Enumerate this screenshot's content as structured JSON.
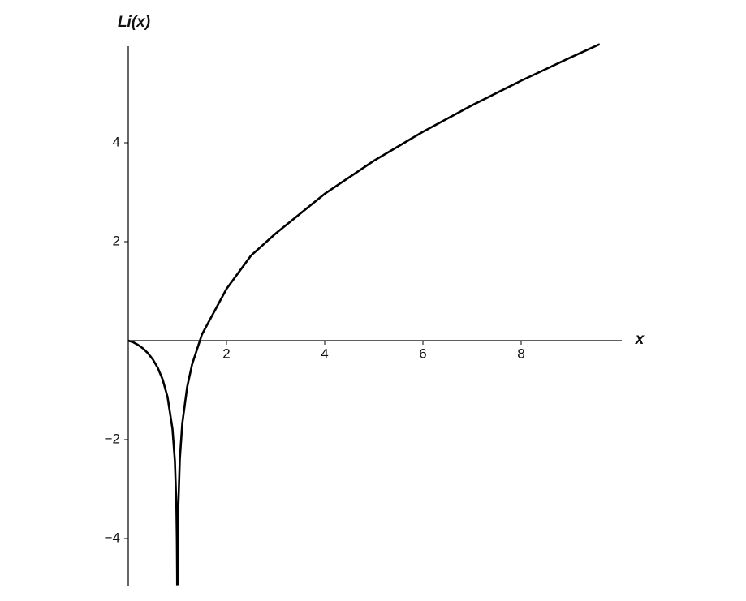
{
  "chart_data": {
    "type": "line",
    "ylabel": "Li(x)",
    "xlabel": "x",
    "x": [
      0,
      0.1,
      0.2,
      0.3,
      0.4,
      0.5,
      0.6,
      0.7,
      0.8,
      0.9,
      0.95,
      0.98,
      0.99,
      0.995,
      0.996,
      1,
      1.004,
      1.005,
      1.01,
      1.02,
      1.05,
      1.1,
      1.2,
      1.3,
      1.5,
      2,
      2.5,
      3,
      4,
      5,
      6,
      7,
      8,
      9,
      9.6
    ],
    "series": [
      {
        "name": "Li(x)",
        "color": "#000000",
        "values": [
          0,
          -0.032,
          -0.086,
          -0.157,
          -0.253,
          -0.379,
          -0.547,
          -0.783,
          -1.138,
          -1.779,
          -2.44,
          -3.345,
          -4.03,
          -4.72,
          -4.945,
          null,
          -4.94,
          -4.716,
          -4.023,
          -3.325,
          -2.394,
          -1.676,
          -0.934,
          -0.48,
          0.125,
          1.045,
          1.72,
          2.164,
          2.968,
          3.635,
          4.222,
          4.757,
          5.254,
          5.72,
          5.992
        ]
      }
    ],
    "xlim": [
      0,
      10
    ],
    "ylim": [
      -5,
      6
    ],
    "xticks": [
      2,
      4,
      6,
      8
    ],
    "yticks": [
      {
        "value": -4,
        "label": "−4"
      },
      {
        "value": -2,
        "label": "−2"
      },
      2,
      4
    ]
  }
}
